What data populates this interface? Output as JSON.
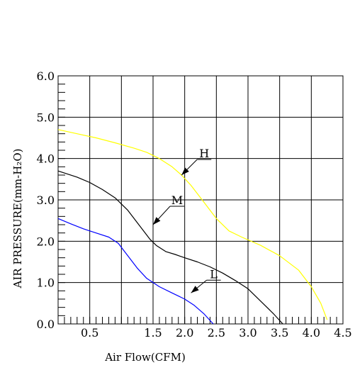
{
  "chart_data": {
    "type": "line",
    "title": "",
    "xlabel": "Air Flow(CFM)",
    "ylabel": "AIR PRESSURE(mm-H₂O)",
    "xlim": [
      0,
      4.5
    ],
    "ylim": [
      0,
      6.0
    ],
    "x_ticks": [
      0.5,
      1.0,
      1.5,
      2.0,
      2.5,
      3.0,
      3.5,
      4.0,
      4.5
    ],
    "x_tick_labels": [
      "0.5",
      "1.5",
      "2.0",
      "2.5",
      "3.0",
      "3.5",
      "4.0",
      "4.5"
    ],
    "x_tick_label_values": [
      0.5,
      1.5,
      2.0,
      2.5,
      3.0,
      3.5,
      4.0,
      4.5
    ],
    "y_ticks": [
      0,
      1.0,
      2.0,
      3.0,
      4.0,
      5.0,
      6.0
    ],
    "y_tick_labels": [
      "0.0",
      "1.0",
      "2.0",
      "3.0",
      "4.0",
      "5.0",
      "6.0"
    ],
    "grid": true,
    "series": [
      {
        "name": "H",
        "color": "#ffff00",
        "x": [
          0.0,
          0.3,
          0.6,
          0.9,
          1.2,
          1.4,
          1.6,
          1.8,
          1.95,
          2.1,
          2.3,
          2.5,
          2.7,
          2.9,
          3.2,
          3.5,
          3.8,
          4.0,
          4.15,
          4.25
        ],
        "y": [
          4.7,
          4.6,
          4.5,
          4.38,
          4.25,
          4.15,
          4.0,
          3.8,
          3.6,
          3.35,
          2.95,
          2.55,
          2.25,
          2.1,
          1.9,
          1.65,
          1.3,
          0.9,
          0.5,
          0.1
        ]
      },
      {
        "name": "M",
        "color": "#000000",
        "x": [
          0.0,
          0.3,
          0.5,
          0.7,
          0.9,
          1.1,
          1.3,
          1.45,
          1.55,
          1.7,
          1.85,
          2.0,
          2.2,
          2.4,
          2.6,
          2.8,
          3.0,
          3.2,
          3.4,
          3.55
        ],
        "y": [
          3.7,
          3.55,
          3.42,
          3.25,
          3.05,
          2.75,
          2.35,
          2.05,
          1.9,
          1.75,
          1.68,
          1.6,
          1.5,
          1.38,
          1.23,
          1.05,
          0.85,
          0.55,
          0.25,
          0.0
        ]
      },
      {
        "name": "L",
        "color": "#0000ff",
        "x": [
          0.0,
          0.2,
          0.4,
          0.6,
          0.8,
          0.95,
          1.1,
          1.25,
          1.4,
          1.6,
          1.8,
          2.0,
          2.15,
          2.3,
          2.45
        ],
        "y": [
          2.55,
          2.42,
          2.3,
          2.2,
          2.1,
          1.95,
          1.65,
          1.35,
          1.1,
          0.9,
          0.75,
          0.6,
          0.45,
          0.25,
          0.0
        ]
      }
    ],
    "annotations": [
      {
        "text": "H",
        "series": "H",
        "point_x": 1.95,
        "point_y": 3.6
      },
      {
        "text": "M",
        "series": "M",
        "point_x": 1.5,
        "point_y": 2.4
      },
      {
        "text": "L",
        "series": "L",
        "point_x": 2.1,
        "point_y": 0.75
      }
    ]
  }
}
